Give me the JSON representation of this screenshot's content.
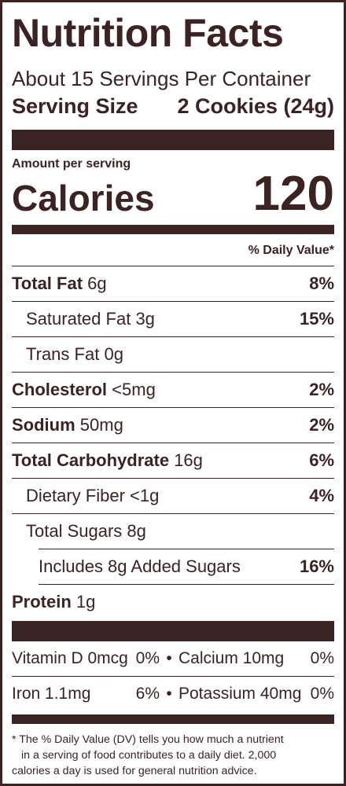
{
  "title": "Nutrition Facts",
  "servings": "About 15 Servings Per Container",
  "serving_size": {
    "label": "Serving Size",
    "value": "2 Cookies (24g)"
  },
  "amount_per_serving": "Amount per serving",
  "calories": {
    "label": "Calories",
    "value": "120"
  },
  "dv_header": "% Daily Value*",
  "nutrients": [
    {
      "name": "Total Fat",
      "amount": "6g",
      "dv": "8%"
    },
    {
      "name": "Saturated Fat",
      "amount": "3g",
      "dv": "15%"
    },
    {
      "name": "Trans Fat",
      "amount": "0g",
      "dv": ""
    },
    {
      "name": "Cholesterol",
      "amount": "<5mg",
      "dv": "2%"
    },
    {
      "name": "Sodium",
      "amount": "50mg",
      "dv": "2%"
    },
    {
      "name": "Total Carbohydrate",
      "amount": "16g",
      "dv": "6%"
    },
    {
      "name": "Dietary Fiber",
      "amount": "<1g",
      "dv": "4%"
    },
    {
      "name": "Total Sugars",
      "amount": "8g",
      "dv": ""
    },
    {
      "name": "Includes 8g Added Sugars",
      "amount": "",
      "dv": "16%"
    },
    {
      "name": "Protein",
      "amount": "1g",
      "dv": ""
    }
  ],
  "vitamins": [
    {
      "left": {
        "name": "Vitamin D 0mcg",
        "dv": "0%"
      },
      "right": {
        "name": "Calcium 10mg",
        "dv": "0%"
      }
    },
    {
      "left": {
        "name": "Iron 1.1mg",
        "dv": "6%"
      },
      "right": {
        "name": "Potassium 40mg",
        "dv": "0%"
      }
    }
  ],
  "separator": "•",
  "footnote": [
    "* The % Daily Value (DV) tells you how much a nutrient",
    "in a serving of food contributes to a daily diet. 2,000",
    "calories a day is used for general nutrition advice."
  ]
}
